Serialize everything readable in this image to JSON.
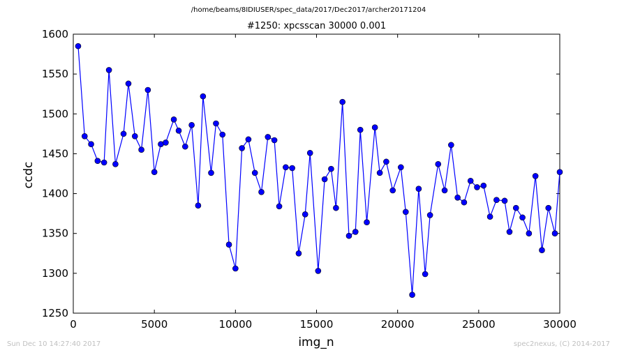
{
  "header": {
    "path": "/home/beams/8IDIUSER/spec_data/2017/Dec2017/archer20171204",
    "title": "#1250: xpcsscan 30000 0.001"
  },
  "footer": {
    "timestamp": "Sun Dec 10 14:27:40 2017",
    "credit": "spec2nexus, (C) 2014-2017"
  },
  "chart_data": {
    "type": "line",
    "title": "#1250: xpcsscan 30000 0.001",
    "xlabel": "img_n",
    "ylabel": "ccdc",
    "xlim": [
      0,
      30000
    ],
    "ylim": [
      1250,
      1600
    ],
    "xticks": [
      "0",
      "5000",
      "10000",
      "15000",
      "20000",
      "25000",
      "30000"
    ],
    "yticks": [
      "1250",
      "1300",
      "1350",
      "1400",
      "1450",
      "1500",
      "1550",
      "1600"
    ],
    "grid": false,
    "series": [
      {
        "color": "#0000ff",
        "marker": "circle",
        "x": [
          300,
          700,
          1100,
          1500,
          1900,
          2200,
          2600,
          3100,
          3400,
          3800,
          4200,
          4600,
          5000,
          5400,
          5700,
          6200,
          6500,
          6900,
          7300,
          7700,
          8000,
          8500,
          8800,
          9200,
          9600,
          10000,
          10400,
          10800,
          11200,
          11600,
          12000,
          12400,
          12700,
          13100,
          13500,
          13900,
          14300,
          14600,
          15100,
          15500,
          15900,
          16200,
          16600,
          17000,
          17400,
          17700,
          18100,
          18600,
          18900,
          19300,
          19700,
          20200,
          20500,
          20900,
          21300,
          21700,
          22000,
          22500,
          22900,
          23300,
          23700,
          24100,
          24500,
          24900,
          25300,
          25700,
          26100,
          26600,
          26900,
          27300,
          27700,
          28100,
          28500,
          28900,
          29300,
          29700,
          30000
        ],
        "y": [
          1585,
          1472,
          1462,
          1441,
          1439,
          1555,
          1437,
          1475,
          1538,
          1472,
          1455,
          1530,
          1427,
          1462,
          1464,
          1493,
          1479,
          1459,
          1486,
          1385,
          1522,
          1426,
          1488,
          1474,
          1336,
          1306,
          1457,
          1468,
          1426,
          1402,
          1471,
          1467,
          1384,
          1433,
          1432,
          1325,
          1374,
          1451,
          1303,
          1418,
          1431,
          1382,
          1515,
          1347,
          1352,
          1480,
          1364,
          1483,
          1426,
          1440,
          1404,
          1433,
          1377,
          1273,
          1406,
          1299,
          1373,
          1437,
          1404,
          1461,
          1395,
          1389,
          1416,
          1408,
          1410,
          1371,
          1392,
          1391,
          1352,
          1382,
          1370,
          1350,
          1422,
          1329,
          1382,
          1350,
          1427
        ]
      }
    ]
  }
}
